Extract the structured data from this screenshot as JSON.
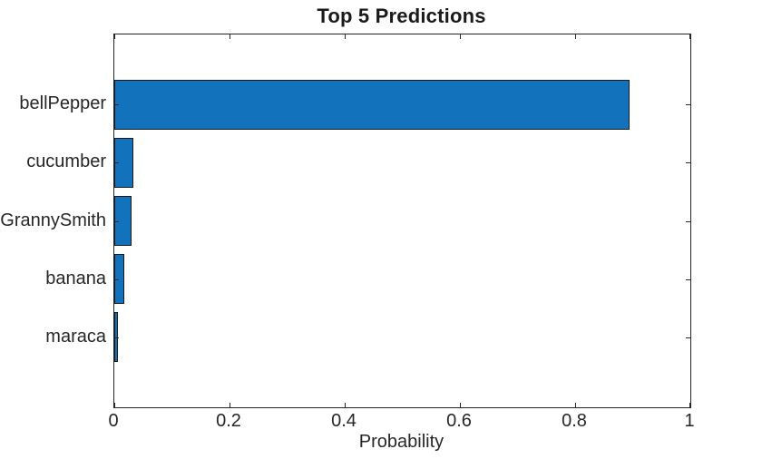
{
  "chart_data": {
    "type": "bar",
    "orientation": "horizontal",
    "title": "Top 5 Predictions",
    "xlabel": "Probability",
    "ylabel": "",
    "categories": [
      "bellPepper",
      "cucumber",
      "GrannySmith",
      "banana",
      "maraca"
    ],
    "values": [
      0.895,
      0.033,
      0.03,
      0.017,
      0.007
    ],
    "xlim": [
      0,
      1
    ],
    "xticks": [
      0,
      0.2,
      0.4,
      0.6,
      0.8,
      1
    ],
    "xtick_labels": [
      "0",
      "0.2",
      "0.4",
      "0.6",
      "0.8",
      "1"
    ],
    "grid": false,
    "legend": null,
    "bar_color": "#1272BB",
    "bar_edge_color": "#1a1a1a",
    "axis_color": "#262626",
    "background_color": "#ffffff"
  }
}
